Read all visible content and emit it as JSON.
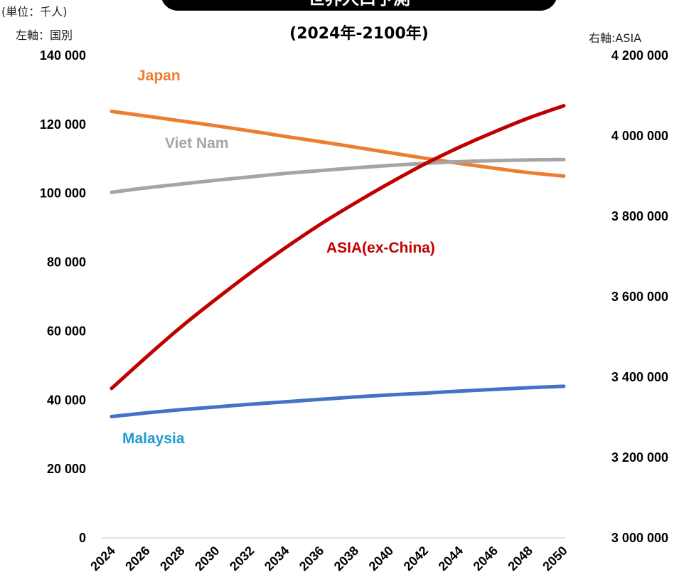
{
  "header": {
    "unit_note": "(単位：千人)",
    "left_axis_note": "左軸：国別",
    "right_axis_note": "右軸:ASIA",
    "title_banner": "世界人口予測",
    "subtitle": "(2024年-2100年)"
  },
  "chart_data": {
    "type": "line",
    "x": [
      2024,
      2026,
      2028,
      2030,
      2032,
      2034,
      2036,
      2038,
      2040,
      2042,
      2044,
      2046,
      2048,
      2050
    ],
    "x_tick_labels": [
      "2024",
      "2026",
      "2028",
      "2030",
      "2032",
      "2034",
      "2036",
      "2038",
      "2040",
      "2042",
      "2044",
      "2046",
      "2048",
      "2050"
    ],
    "y_left": {
      "ylim": [
        0,
        140000
      ],
      "tick_values": [
        0,
        20000,
        40000,
        60000,
        80000,
        100000,
        120000,
        140000
      ],
      "tick_labels": [
        "0",
        "20 000",
        "40 000",
        "60 000",
        "80 000",
        "100 000",
        "120 000",
        "140 000"
      ]
    },
    "y_right": {
      "ylim": [
        3000000,
        4200000
      ],
      "tick_values": [
        3000000,
        3200000,
        3400000,
        3600000,
        3800000,
        4000000,
        4200000
      ],
      "tick_labels": [
        "3 000 000",
        "3 200 000",
        "3 400 000",
        "3 600 000",
        "3 800 000",
        "4 000 000",
        "4 200 000"
      ]
    },
    "series": [
      {
        "name": "Japan",
        "axis": "left",
        "color": "#ED7D31",
        "label_color": "#ED7D31",
        "values": [
          123800,
          122400,
          121000,
          119600,
          118100,
          116500,
          115000,
          113400,
          111800,
          110200,
          108700,
          107300,
          106000,
          105000
        ]
      },
      {
        "name": "Viet Nam",
        "axis": "left",
        "color": "#A5A5A5",
        "label_color": "#A5A5A5",
        "values": [
          100300,
          101600,
          102700,
          103800,
          104800,
          105800,
          106600,
          107400,
          108100,
          108700,
          109200,
          109500,
          109700,
          109800
        ]
      },
      {
        "name": "ASIA(ex-China)",
        "axis": "right",
        "color": "#C00000",
        "label_color": "#C00000",
        "values": [
          3372000,
          3450000,
          3525000,
          3594000,
          3660000,
          3722000,
          3780000,
          3833000,
          3883000,
          3930000,
          3972000,
          4010000,
          4045000,
          4075000
        ]
      },
      {
        "name": "Malaysia",
        "axis": "left",
        "color": "#4472C4",
        "label_color": "#1F9BCF",
        "values": [
          35200,
          36300,
          37200,
          38000,
          38800,
          39500,
          40200,
          40900,
          41500,
          42000,
          42600,
          43100,
          43600,
          44000
        ]
      }
    ]
  }
}
